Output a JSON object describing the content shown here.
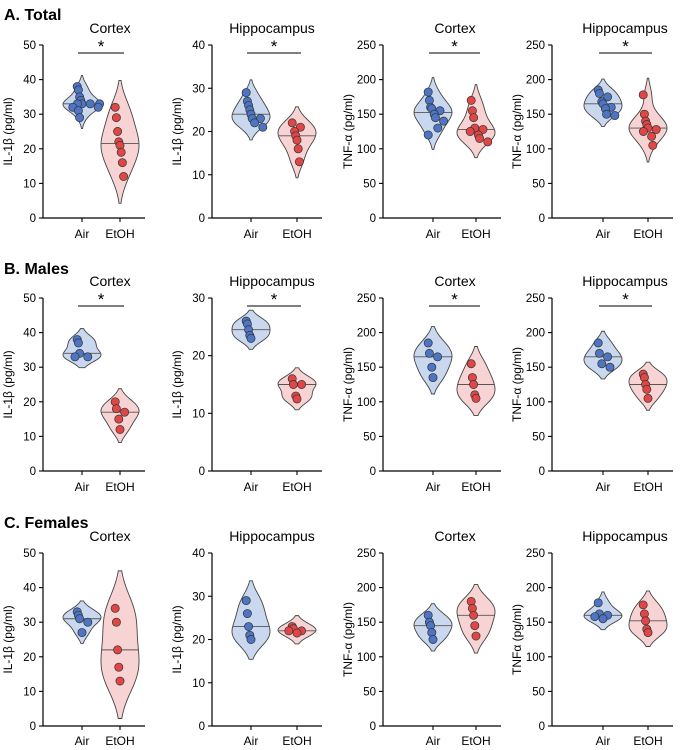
{
  "colors": {
    "air_fill": "#c9d8ee",
    "air_dot": "#4e74c4",
    "etoh_fill": "#f8d3d3",
    "etoh_dot": "#e04646",
    "dot_stroke": "#333333",
    "violin_stroke": "#444444",
    "axis": "#000000"
  },
  "chart_data": [
    {
      "section": "A. Total",
      "panels": [
        {
          "type": "violin",
          "title": "Cortex",
          "ylabel": "IL-1β (pg/ml)",
          "ylim": [
            0,
            50
          ],
          "yticks": [
            0,
            10,
            20,
            30,
            40,
            50
          ],
          "categories": [
            "Air",
            "EtOH"
          ],
          "significance": "*",
          "series": [
            {
              "name": "Air",
              "values": [
                38,
                37,
                35,
                34,
                33,
                33,
                33,
                33,
                32,
                32,
                31,
                29
              ]
            },
            {
              "name": "EtOH",
              "values": [
                32,
                29,
                25,
                22,
                21,
                19,
                16,
                12
              ]
            }
          ]
        },
        {
          "type": "violin",
          "title": "Hippocampus",
          "ylabel": "IL-1β (pg/ml)",
          "ylim": [
            0,
            40
          ],
          "yticks": [
            0,
            10,
            20,
            30,
            40
          ],
          "categories": [
            "Air",
            "EtOH"
          ],
          "significance": "*",
          "series": [
            {
              "name": "Air",
              "values": [
                29,
                27,
                26,
                25,
                24,
                23,
                23,
                22,
                21
              ]
            },
            {
              "name": "EtOH",
              "values": [
                22,
                21,
                20,
                19,
                18,
                16,
                13
              ]
            }
          ]
        },
        {
          "type": "violin",
          "title": "Cortex",
          "ylabel": "TNF-α (pg/ml)",
          "ylim": [
            0,
            250
          ],
          "yticks": [
            0,
            50,
            100,
            150,
            200,
            250
          ],
          "categories": [
            "Air",
            "EtOH"
          ],
          "significance": "*",
          "series": [
            {
              "name": "Air",
              "values": [
                182,
                170,
                160,
                158,
                155,
                150,
                145,
                140,
                130,
                120
              ]
            },
            {
              "name": "EtOH",
              "values": [
                170,
                155,
                145,
                130,
                128,
                125,
                120,
                115,
                110
              ]
            }
          ]
        },
        {
          "type": "violin",
          "title": "Hippocampus",
          "ylabel": "TNF-α (pg/ml)",
          "ylim": [
            0,
            250
          ],
          "yticks": [
            0,
            50,
            100,
            150,
            200,
            250
          ],
          "categories": [
            "Air",
            "EtOH"
          ],
          "significance": "*",
          "series": [
            {
              "name": "Air",
              "values": [
                185,
                180,
                175,
                168,
                165,
                160,
                158,
                150,
                148
              ]
            },
            {
              "name": "EtOH",
              "values": [
                178,
                150,
                140,
                135,
                130,
                128,
                125,
                118,
                105
              ]
            }
          ]
        }
      ]
    },
    {
      "section": "B. Males",
      "panels": [
        {
          "type": "violin",
          "title": "Cortex",
          "ylabel": "IL-1β (pg/ml)",
          "ylim": [
            0,
            50
          ],
          "yticks": [
            0,
            10,
            20,
            30,
            40,
            50
          ],
          "categories": [
            "Air",
            "EtOH"
          ],
          "significance": "*",
          "series": [
            {
              "name": "Air",
              "values": [
                38,
                37,
                34,
                33,
                33
              ]
            },
            {
              "name": "EtOH",
              "values": [
                20,
                18,
                17,
                15,
                12
              ]
            }
          ]
        },
        {
          "type": "violin",
          "title": "Hippocampus",
          "ylabel": "IL-1β (pg/ml)",
          "ylim": [
            0,
            30
          ],
          "yticks": [
            0,
            10,
            20,
            30
          ],
          "categories": [
            "Air",
            "EtOH"
          ],
          "significance": "*",
          "series": [
            {
              "name": "Air",
              "values": [
                26,
                25.5,
                24.5,
                23.5,
                23
              ]
            },
            {
              "name": "EtOH",
              "values": [
                16,
                15,
                15,
                13,
                12.5
              ]
            }
          ]
        },
        {
          "type": "violin",
          "title": "Cortex",
          "ylabel": "TNF-α (pg/ml)",
          "ylim": [
            0,
            250
          ],
          "yticks": [
            0,
            50,
            100,
            150,
            200,
            250
          ],
          "categories": [
            "Air",
            "EtOH"
          ],
          "significance": "*",
          "series": [
            {
              "name": "Air",
              "values": [
                185,
                170,
                165,
                150,
                135
              ]
            },
            {
              "name": "EtOH",
              "values": [
                155,
                135,
                125,
                110,
                105
              ]
            }
          ]
        },
        {
          "type": "violin",
          "title": "Hippocampus",
          "ylabel": "TNF-α (pg/ml)",
          "ylim": [
            0,
            250
          ],
          "yticks": [
            0,
            50,
            100,
            150,
            200,
            250
          ],
          "categories": [
            "Air",
            "EtOH"
          ],
          "significance": "*",
          "series": [
            {
              "name": "Air",
              "values": [
                185,
                170,
                165,
                155,
                150
              ]
            },
            {
              "name": "EtOH",
              "values": [
                140,
                135,
                125,
                118,
                105
              ]
            }
          ]
        }
      ]
    },
    {
      "section": "C. Females",
      "panels": [
        {
          "type": "violin",
          "title": "Cortex",
          "ylabel": "IL-1β (pg/ml)",
          "ylim": [
            0,
            50
          ],
          "yticks": [
            0,
            10,
            20,
            30,
            40,
            50
          ],
          "categories": [
            "Air",
            "EtOH"
          ],
          "significance": "",
          "series": [
            {
              "name": "Air",
              "values": [
                33,
                32,
                31,
                30,
                27
              ]
            },
            {
              "name": "EtOH",
              "values": [
                34,
                30,
                22,
                17,
                13
              ]
            }
          ]
        },
        {
          "type": "violin",
          "title": "Hippocampus",
          "ylabel": "IL-1β (pg/ml)",
          "ylim": [
            0,
            40
          ],
          "yticks": [
            0,
            10,
            20,
            30,
            40
          ],
          "categories": [
            "Air",
            "EtOH"
          ],
          "significance": "",
          "series": [
            {
              "name": "Air",
              "values": [
                29,
                26,
                23,
                21,
                20
              ]
            },
            {
              "name": "EtOH",
              "values": [
                23,
                22.5,
                22,
                22,
                21.5
              ]
            }
          ]
        },
        {
          "type": "violin",
          "title": "Cortex",
          "ylabel": "TNF-α (pg/ml)",
          "ylim": [
            0,
            250
          ],
          "yticks": [
            0,
            50,
            100,
            150,
            200,
            250
          ],
          "categories": [
            "Air",
            "EtOH"
          ],
          "significance": "",
          "series": [
            {
              "name": "Air",
              "values": [
                160,
                150,
                145,
                135,
                125
              ]
            },
            {
              "name": "EtOH",
              "values": [
                180,
                170,
                160,
                145,
                130
              ]
            }
          ]
        },
        {
          "type": "violin",
          "title": "Hippocampus",
          "ylabel": "TNFα (pg/ml)",
          "ylim": [
            0,
            250
          ],
          "yticks": [
            0,
            50,
            100,
            150,
            200,
            250
          ],
          "categories": [
            "Air",
            "EtOH"
          ],
          "significance": "",
          "series": [
            {
              "name": "Air",
              "values": [
                178,
                162,
                160,
                158,
                155
              ]
            },
            {
              "name": "EtOH",
              "values": [
                175,
                162,
                152,
                140,
                135
              ]
            }
          ]
        }
      ]
    }
  ]
}
